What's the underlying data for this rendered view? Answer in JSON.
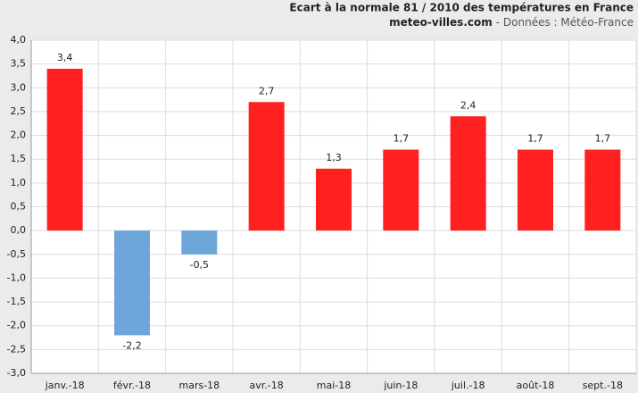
{
  "chart_data": {
    "type": "bar",
    "title": "Ecart à la normale 81 / 2010 des températures en France",
    "source": "meteo-villes.com",
    "source_note": "- Données : Météo-France",
    "categories": [
      "janv.-18",
      "févr.-18",
      "mars-18",
      "avr.-18",
      "mai-18",
      "juin-18",
      "juil.-18",
      "août-18",
      "sept.-18"
    ],
    "values": [
      3.4,
      -2.2,
      -0.5,
      2.7,
      1.3,
      1.7,
      2.4,
      1.7,
      1.7
    ],
    "value_labels": [
      "3,4",
      "-2,2",
      "-0,5",
      "2,7",
      "1,3",
      "1,7",
      "2,4",
      "1,7",
      "1,7"
    ],
    "positive_color": "#ff2020",
    "negative_color": "#6ea6da",
    "ylim": [
      -3,
      4
    ],
    "yticks": [
      {
        "value": -3,
        "label": "-3,0"
      },
      {
        "value": -2.5,
        "label": "-2,5"
      },
      {
        "value": -2,
        "label": "-2,0"
      },
      {
        "value": -1.5,
        "label": "-1,5"
      },
      {
        "value": -1,
        "label": "-1,0"
      },
      {
        "value": -0.5,
        "label": "-0,5"
      },
      {
        "value": 0,
        "label": "0,0"
      },
      {
        "value": 0.5,
        "label": "0,5"
      },
      {
        "value": 1,
        "label": "1,0"
      },
      {
        "value": 1.5,
        "label": "1,5"
      },
      {
        "value": 2,
        "label": "2,0"
      },
      {
        "value": 2.5,
        "label": "2,5"
      },
      {
        "value": 3,
        "label": "3,0"
      },
      {
        "value": 3.5,
        "label": "3,5"
      },
      {
        "value": 4,
        "label": "4,0"
      }
    ],
    "grid": true
  }
}
